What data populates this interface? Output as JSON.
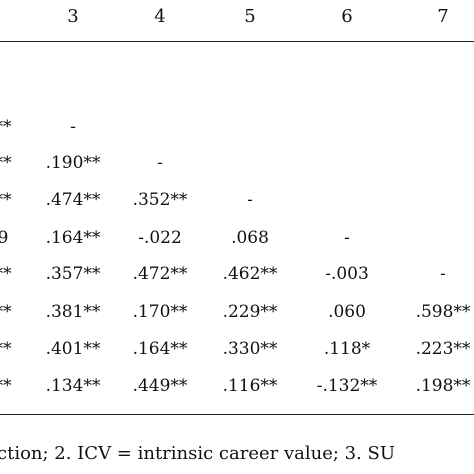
{
  "table": {
    "column_headers": [
      "3",
      "4",
      "5",
      "6",
      "7"
    ],
    "first_column_fragments": [
      "**",
      "**",
      "**",
      "9",
      "**",
      "**",
      "**",
      "**"
    ],
    "rows": [
      [
        "-",
        "",
        "",
        "",
        ""
      ],
      [
        ".190**",
        "-",
        "",
        "",
        ""
      ],
      [
        ".474**",
        ".352**",
        "-",
        "",
        ""
      ],
      [
        ".164**",
        "-.022",
        ".068",
        "-",
        ""
      ],
      [
        ".357**",
        ".472**",
        ".462**",
        "-.003",
        "-"
      ],
      [
        ".381**",
        ".170**",
        ".229**",
        ".060",
        ".598**"
      ],
      [
        ".401**",
        ".164**",
        ".330**",
        ".118*",
        ".223**"
      ],
      [
        ".134**",
        ".449**",
        ".116**",
        "-.132**",
        ".198**"
      ]
    ]
  },
  "footnote": "ction; 2. ICV = intrinsic career value; 3. SU"
}
